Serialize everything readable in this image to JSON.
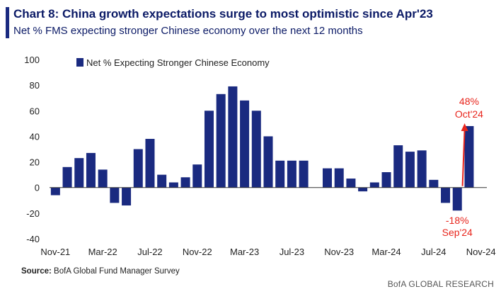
{
  "title": "Chart 8: China growth expectations surge to most optimistic since Apr'23",
  "subtitle": "Net % FMS expecting stronger Chinese economy over the next 12 months",
  "source_label": "Source:",
  "source_text": "BofA Global Fund Manager Survey",
  "brand": "BofA GLOBAL RESEARCH",
  "colors": {
    "bar": "#1a2a80",
    "annotation": "#e8251c",
    "title": "#0b1a66"
  },
  "chart_data": {
    "type": "bar",
    "legend": {
      "entries": [
        "Net % Expecting Stronger Chinese Economy"
      ],
      "position": "top-left"
    },
    "ylim": [
      -40,
      100
    ],
    "yticks": [
      -40,
      -20,
      0,
      20,
      40,
      60,
      80,
      100
    ],
    "xtick_labels": [
      "Nov-21",
      "Mar-22",
      "Jul-22",
      "Nov-22",
      "Mar-23",
      "Jul-23",
      "Nov-23",
      "Mar-24",
      "Jul-24",
      "Nov-24"
    ],
    "categories": [
      "Nov-21",
      "Dec-21",
      "Jan-22",
      "Feb-22",
      "Mar-22",
      "Apr-22",
      "May-22",
      "Jun-22",
      "Jul-22",
      "Aug-22",
      "Sep-22",
      "Oct-22",
      "Nov-22",
      "Dec-22",
      "Jan-23",
      "Feb-23",
      "Mar-23",
      "Apr-23",
      "May-23",
      "Jun-23",
      "Jul-23",
      "Aug-23",
      "Sep-23",
      "Oct-23",
      "Nov-23",
      "Dec-23",
      "Jan-24",
      "Feb-24",
      "Mar-24",
      "Apr-24",
      "May-24",
      "Jun-24",
      "Jul-24",
      "Aug-24",
      "Sep-24",
      "Oct-24",
      "Nov-24"
    ],
    "values": [
      -6,
      16,
      23,
      27,
      14,
      -12,
      -14,
      30,
      38,
      10,
      4,
      8,
      18,
      60,
      73,
      79,
      68,
      60,
      40,
      21,
      21,
      21,
      null,
      15,
      15,
      7,
      -3,
      4,
      12,
      33,
      28,
      29,
      6,
      -12,
      -18,
      48,
      null
    ],
    "annotations": [
      {
        "category": "Oct-24",
        "lines": [
          "48%",
          "Oct'24"
        ]
      },
      {
        "category": "Sep-24",
        "lines": [
          "-18%",
          "Sep'24"
        ]
      }
    ]
  }
}
